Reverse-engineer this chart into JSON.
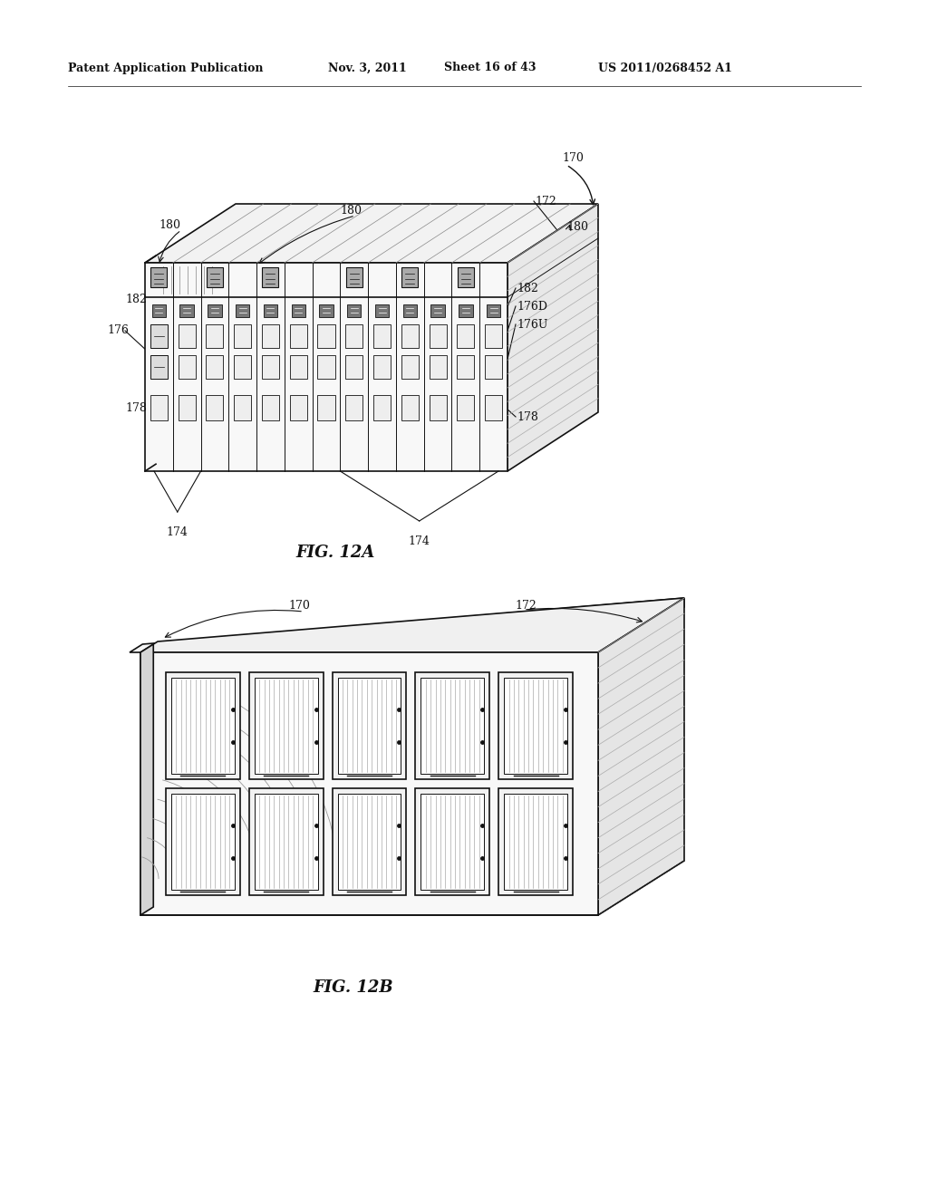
{
  "bg_color": "#ffffff",
  "header_text": "Patent Application Publication",
  "header_date": "Nov. 3, 2011",
  "header_sheet": "Sheet 16 of 43",
  "header_patent": "US 2011/0268452 A1",
  "fig12a_label": "FIG. 12A",
  "fig12b_label": "FIG. 12B",
  "color_main": "#111111",
  "color_face_front": "#f8f8f8",
  "color_face_top": "#eeeeee",
  "color_face_right": "#e0e0e0",
  "color_face_left": "#d8d8d8",
  "color_hatch": "#888888",
  "color_port_fill": "#e8e8e8",
  "color_connector_fill": "#666666"
}
